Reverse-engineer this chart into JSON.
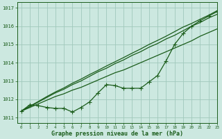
{
  "xlabel": "Graphe pression niveau de la mer (hPa)",
  "bg_color": "#cce8e0",
  "grid_color": "#a0c8bc",
  "line_color": "#1a5c1a",
  "xlim": [
    -0.5,
    23
  ],
  "ylim": [
    1010.7,
    1017.3
  ],
  "yticks": [
    1011,
    1012,
    1013,
    1014,
    1015,
    1016,
    1017
  ],
  "xticks": [
    0,
    1,
    2,
    3,
    4,
    5,
    6,
    7,
    8,
    9,
    10,
    11,
    12,
    13,
    14,
    15,
    16,
    17,
    18,
    19,
    20,
    21,
    22,
    23
  ],
  "hours": [
    0,
    1,
    2,
    3,
    4,
    5,
    6,
    7,
    8,
    9,
    10,
    11,
    12,
    13,
    14,
    15,
    16,
    17,
    18,
    19,
    20,
    21,
    22,
    23
  ],
  "line_wavy": [
    1011.35,
    1011.7,
    1011.65,
    1011.55,
    1011.5,
    1011.5,
    1011.3,
    1011.55,
    1011.85,
    1012.35,
    1012.8,
    1012.75,
    1012.6,
    1012.6,
    1012.6,
    1012.95,
    1013.3,
    1014.1,
    1015.0,
    1015.6,
    1016.0,
    1016.3,
    1016.55,
    1016.8
  ],
  "line_straight1": [
    1011.35,
    1011.55,
    1011.75,
    1011.95,
    1012.15,
    1012.3,
    1012.5,
    1012.65,
    1012.85,
    1013.05,
    1013.25,
    1013.45,
    1013.6,
    1013.8,
    1014.0,
    1014.2,
    1014.4,
    1014.6,
    1014.8,
    1015.0,
    1015.2,
    1015.45,
    1015.65,
    1015.85
  ],
  "line_straight2": [
    1011.35,
    1011.6,
    1011.85,
    1012.1,
    1012.35,
    1012.55,
    1012.8,
    1013.0,
    1013.25,
    1013.5,
    1013.7,
    1013.95,
    1014.15,
    1014.4,
    1014.6,
    1014.85,
    1015.05,
    1015.3,
    1015.5,
    1015.75,
    1016.0,
    1016.2,
    1016.45,
    1016.65
  ],
  "line_straight3": [
    1011.35,
    1011.62,
    1011.88,
    1012.15,
    1012.4,
    1012.62,
    1012.88,
    1013.1,
    1013.35,
    1013.58,
    1013.82,
    1014.05,
    1014.28,
    1014.52,
    1014.75,
    1015.0,
    1015.22,
    1015.45,
    1015.7,
    1015.95,
    1016.15,
    1016.38,
    1016.6,
    1016.85
  ]
}
